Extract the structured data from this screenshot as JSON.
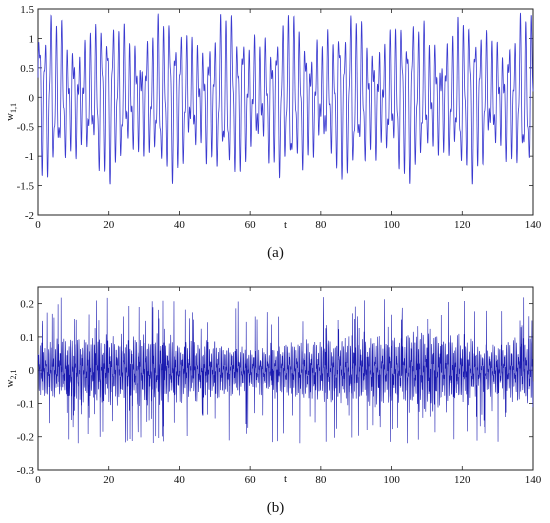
{
  "chart_data": [
    {
      "type": "line",
      "caption": "(a)",
      "xlabel": "t",
      "ylabel_main": "w",
      "ylabel_sub": "1,1",
      "xlim": [
        0,
        140
      ],
      "ylim": [
        -2,
        1.5
      ],
      "xticks": [
        0,
        20,
        40,
        60,
        80,
        100,
        120,
        140
      ],
      "yticks": [
        -2,
        -1.5,
        -1,
        -0.5,
        0,
        0.5,
        1,
        1.5
      ],
      "yticklabels": [
        "-2",
        "-1.5",
        "-1",
        "-0.5",
        "0",
        "0.5",
        "1",
        "1.5"
      ],
      "grid": false,
      "signal": {
        "description_values": "quasi-periodic oscillation, amplitude about 1.3-1.5",
        "t_start": 0,
        "t_end": 140,
        "peak_max": 1.47,
        "trough_min": -1.47,
        "approx_period": 1.6
      },
      "color": "#3a3ad0"
    },
    {
      "type": "line",
      "caption": "(b)",
      "xlabel": "t",
      "ylabel_main": "w",
      "ylabel_sub": "2,1",
      "xlim": [
        0,
        140
      ],
      "ylim": [
        -0.3,
        0.25
      ],
      "xticks": [
        0,
        20,
        40,
        60,
        80,
        100,
        120,
        140
      ],
      "yticks": [
        -0.3,
        -0.2,
        -0.1,
        0,
        0.1,
        0.2
      ],
      "yticklabels": [
        "-0.3",
        "-0.2",
        "-0.1",
        "0",
        "0.1",
        "0.2"
      ],
      "grid": false,
      "signal": {
        "description_values": "noisy chaotic oscillation with spikes up to about 0.22 and down to about -0.22",
        "t_start": 0,
        "t_end": 140,
        "peak_max": 0.22,
        "trough_min": -0.22
      },
      "color": "#1a1ab0"
    }
  ]
}
